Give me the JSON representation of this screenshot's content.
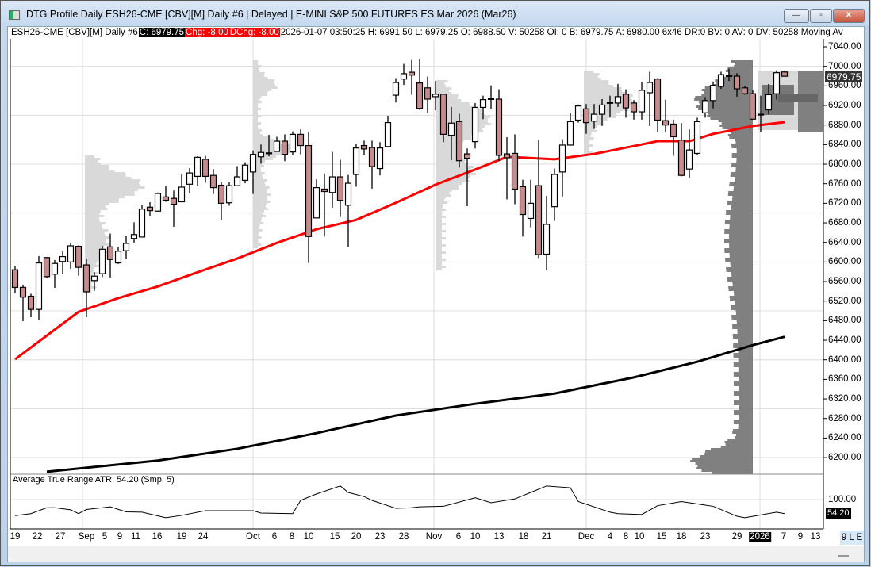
{
  "window": {
    "title": "DTG Profile Daily ESH26-CME [CBV][M]  Daily #6 | Delayed | E-MINI S&P 500 FUTURES ES Mar 2026 (Mar26)",
    "minimize": "—",
    "maximize": "▫",
    "close": "✕"
  },
  "info": {
    "symbol": "ESH26-CME [CBV][M]  Daily #6",
    "close": "C: 6979.75",
    "chg": "Chg: -8.00",
    "dchg": "DChg: -8.00",
    "details": "2026-01-07 03:50:25 H: 6991.50 L: 6979.25 O: 6988.50 V: 50258 OI: 0 B: 6979.75 A: 6980.00 6x46 DR:0 BV: 0 AV: 0 DV: 50258 Moving Av"
  },
  "colors": {
    "up_body": "#ffffff",
    "down_body": "#c48c8c",
    "ma_fast": "#ff0000",
    "ma_slow": "#000000",
    "profile_light": "#d9d9d9",
    "profile_dark": "#808080",
    "grid": "#dcdcdc"
  },
  "price_axis": {
    "labels": [
      "7040.00",
      "7000.00",
      "6960.00",
      "6920.00",
      "6880.00",
      "6840.00",
      "6800.00",
      "6760.00",
      "6720.00",
      "6680.00",
      "6640.00",
      "6600.00",
      "6560.00",
      "6520.00",
      "6480.00",
      "6440.00",
      "6400.00",
      "6360.00",
      "6320.00",
      "6280.00",
      "6240.00",
      "6200.00"
    ],
    "last_price": "6979.75"
  },
  "date_axis": {
    "labels": [
      "19",
      "22",
      "27",
      "Sep",
      "5",
      "9",
      "11",
      "16",
      "19",
      "24",
      "Oct",
      "6",
      "8",
      "10",
      "15",
      "20",
      "23",
      "28",
      "Nov",
      "6",
      "10",
      "13",
      "18",
      "21",
      "Dec",
      "4",
      "8",
      "10",
      "15",
      "18",
      "23",
      "29",
      "2026",
      "7",
      "9",
      "13"
    ],
    "highlight": "2026"
  },
  "atr": {
    "label": "Average True Range  ATR: 54.20  (Smp, 5)",
    "axis_label": "100.00",
    "last": "54.20"
  },
  "scale_button": "9 L E",
  "chart_data": {
    "type": "candlestick",
    "ylim": [
      6180,
      7060
    ],
    "ohlc": [
      [
        6584,
        6592,
        6536,
        6548
      ],
      [
        6548,
        6553,
        6479,
        6528
      ],
      [
        6530,
        6535,
        6487,
        6503
      ],
      [
        6503,
        6612,
        6481,
        6598
      ],
      [
        6609,
        6610,
        6568,
        6570
      ],
      [
        6575,
        6604,
        6547,
        6597
      ],
      [
        6601,
        6622,
        6575,
        6611
      ],
      [
        6600,
        6638,
        6586,
        6633
      ],
      [
        6632,
        6634,
        6572,
        6589
      ],
      [
        6594,
        6607,
        6487,
        6539
      ],
      [
        6562,
        6579,
        6541,
        6571
      ],
      [
        6576,
        6633,
        6569,
        6626
      ],
      [
        6631,
        6658,
        6568,
        6605
      ],
      [
        6598,
        6631,
        6596,
        6622
      ],
      [
        6623,
        6654,
        6606,
        6638
      ],
      [
        6648,
        6681,
        6639,
        6656
      ],
      [
        6651,
        6717,
        6651,
        6708
      ],
      [
        6712,
        6722,
        6693,
        6705
      ],
      [
        6704,
        6742,
        6703,
        6740
      ],
      [
        6733,
        6756,
        6723,
        6726
      ],
      [
        6730,
        6746,
        6672,
        6718
      ],
      [
        6723,
        6779,
        6723,
        6753
      ],
      [
        6759,
        6792,
        6740,
        6782
      ],
      [
        6775,
        6816,
        6756,
        6814
      ],
      [
        6810,
        6817,
        6762,
        6775
      ],
      [
        6777,
        6790,
        6739,
        6752
      ],
      [
        6757,
        6764,
        6685,
        6720
      ],
      [
        6721,
        6763,
        6715,
        6756
      ],
      [
        6756,
        6796,
        6755,
        6774
      ],
      [
        6767,
        6804,
        6761,
        6798
      ],
      [
        6784,
        6828,
        6739,
        6820
      ],
      [
        6815,
        6840,
        6801,
        6824
      ],
      [
        6822,
        6860,
        6816,
        6823
      ],
      [
        6826,
        6856,
        6826,
        6847
      ],
      [
        6847,
        6861,
        6806,
        6820
      ],
      [
        6825,
        6867,
        6818,
        6861
      ],
      [
        6861,
        6871,
        6820,
        6838
      ],
      [
        6838,
        6866,
        6598,
        6652
      ],
      [
        6690,
        6769,
        6690,
        6752
      ],
      [
        6749,
        6781,
        6652,
        6744
      ],
      [
        6742,
        6825,
        6711,
        6774
      ],
      [
        6774,
        6809,
        6692,
        6726
      ],
      [
        6716,
        6778,
        6630,
        6761
      ],
      [
        6779,
        6842,
        6754,
        6833
      ],
      [
        6838,
        6848,
        6818,
        6831
      ],
      [
        6834,
        6848,
        6750,
        6795
      ],
      [
        6791,
        6845,
        6777,
        6833
      ],
      [
        6836,
        6899,
        6836,
        6885
      ],
      [
        6941,
        6976,
        6926,
        6967
      ],
      [
        6974,
        7005,
        6962,
        6985
      ],
      [
        6988,
        7013,
        6942,
        6982
      ],
      [
        6966,
        7014,
        6911,
        6914
      ],
      [
        6956,
        6979,
        6905,
        6933
      ],
      [
        6938,
        6970,
        6910,
        6943
      ],
      [
        6943,
        6943,
        6845,
        6861
      ],
      [
        6859,
        6917,
        6808,
        6884
      ],
      [
        6887,
        6903,
        6793,
        6807
      ],
      [
        6821,
        6832,
        6714,
        6812
      ],
      [
        6846,
        6925,
        6832,
        6916
      ],
      [
        6916,
        6940,
        6892,
        6932
      ],
      [
        6934,
        6961,
        6913,
        6934
      ],
      [
        6933,
        6953,
        6806,
        6818
      ],
      [
        6821,
        6855,
        6728,
        6813
      ],
      [
        6822,
        6861,
        6718,
        6749
      ],
      [
        6754,
        6768,
        6652,
        6697
      ],
      [
        6689,
        6768,
        6671,
        6720
      ],
      [
        6756,
        6849,
        6608,
        6615
      ],
      [
        6616,
        6735,
        6584,
        6677
      ],
      [
        6713,
        6791,
        6684,
        6779
      ],
      [
        6784,
        6851,
        6734,
        6839
      ],
      [
        6839,
        6905,
        6838,
        6887
      ],
      [
        6890,
        6922,
        6885,
        6919
      ],
      [
        6913,
        6923,
        6862,
        6885
      ],
      [
        6888,
        6923,
        6872,
        6902
      ],
      [
        6902,
        6933,
        6878,
        6921
      ],
      [
        6925,
        6940,
        6896,
        6926
      ],
      [
        6925,
        6964,
        6917,
        6938
      ],
      [
        6943,
        6953,
        6895,
        6915
      ],
      [
        6925,
        6931,
        6891,
        6907
      ],
      [
        6907,
        6968,
        6891,
        6951
      ],
      [
        6946,
        6989,
        6878,
        6967
      ],
      [
        6974,
        6976,
        6865,
        6890
      ],
      [
        6889,
        6932,
        6865,
        6880
      ],
      [
        6882,
        6891,
        6817,
        6856
      ],
      [
        6849,
        6884,
        6775,
        6777
      ],
      [
        6790,
        6871,
        6772,
        6829
      ],
      [
        6822,
        6895,
        6818,
        6887
      ],
      [
        6905,
        6937,
        6895,
        6930
      ],
      [
        6930,
        6969,
        6914,
        6961
      ],
      [
        6959,
        6989,
        6954,
        6983
      ],
      [
        6980,
        6995,
        6970,
        6981
      ],
      [
        6980,
        6986,
        6938,
        6954
      ],
      [
        6956,
        6960,
        6942,
        6944
      ],
      [
        6944,
        6951,
        6892,
        6892
      ],
      [
        6902,
        6940,
        6866,
        6901
      ],
      [
        6911,
        6964,
        6902,
        6942
      ],
      [
        6944,
        6992,
        6932,
        6987
      ],
      [
        6988.5,
        6991.5,
        6979.25,
        6979.75
      ]
    ],
    "ma_fast": [
      [
        0,
        6401
      ],
      [
        8,
        6498
      ],
      [
        13,
        6526
      ],
      [
        18,
        6550
      ],
      [
        23,
        6579
      ],
      [
        28,
        6607
      ],
      [
        33,
        6639
      ],
      [
        38,
        6667
      ],
      [
        43,
        6686
      ],
      [
        48,
        6721
      ],
      [
        53,
        6758
      ],
      [
        58,
        6789
      ],
      [
        62,
        6815
      ],
      [
        68,
        6810
      ],
      [
        73,
        6821
      ],
      [
        78,
        6837
      ],
      [
        81,
        6847
      ],
      [
        85,
        6847
      ],
      [
        88,
        6862
      ],
      [
        93,
        6878
      ],
      [
        97,
        6886
      ]
    ],
    "ma_slow": [
      [
        4,
        6171
      ],
      [
        18,
        6194
      ],
      [
        28,
        6218
      ],
      [
        38,
        6250
      ],
      [
        48,
        6286
      ],
      [
        58,
        6310
      ],
      [
        68,
        6331
      ],
      [
        78,
        6364
      ],
      [
        86,
        6396
      ],
      [
        93,
        6430
      ],
      [
        97,
        6447
      ]
    ],
    "atr_series": [
      [
        0,
        45
      ],
      [
        2,
        52
      ],
      [
        4,
        72
      ],
      [
        5,
        72
      ],
      [
        7,
        65
      ],
      [
        8,
        52
      ],
      [
        9,
        66
      ],
      [
        12,
        75
      ],
      [
        14,
        58
      ],
      [
        16,
        57
      ],
      [
        19,
        38
      ],
      [
        21,
        46
      ],
      [
        24,
        62
      ],
      [
        26,
        62
      ],
      [
        30,
        62
      ],
      [
        31,
        54
      ],
      [
        35,
        52
      ],
      [
        36,
        97
      ],
      [
        38,
        119
      ],
      [
        41,
        146
      ],
      [
        42,
        124
      ],
      [
        44,
        110
      ],
      [
        45,
        97
      ],
      [
        48,
        70
      ],
      [
        50,
        72
      ],
      [
        51,
        75
      ],
      [
        54,
        77
      ],
      [
        55,
        84
      ],
      [
        58,
        106
      ],
      [
        60,
        89
      ],
      [
        63,
        102
      ],
      [
        65,
        124
      ],
      [
        67,
        146
      ],
      [
        70,
        140
      ],
      [
        71,
        93
      ],
      [
        75,
        57
      ],
      [
        76,
        52
      ],
      [
        79,
        49
      ],
      [
        81,
        79
      ],
      [
        84,
        93
      ],
      [
        88,
        77
      ],
      [
        91,
        43
      ],
      [
        92,
        38
      ],
      [
        96,
        57
      ],
      [
        97,
        52
      ]
    ],
    "atr_ylim": [
      0,
      120
    ]
  }
}
